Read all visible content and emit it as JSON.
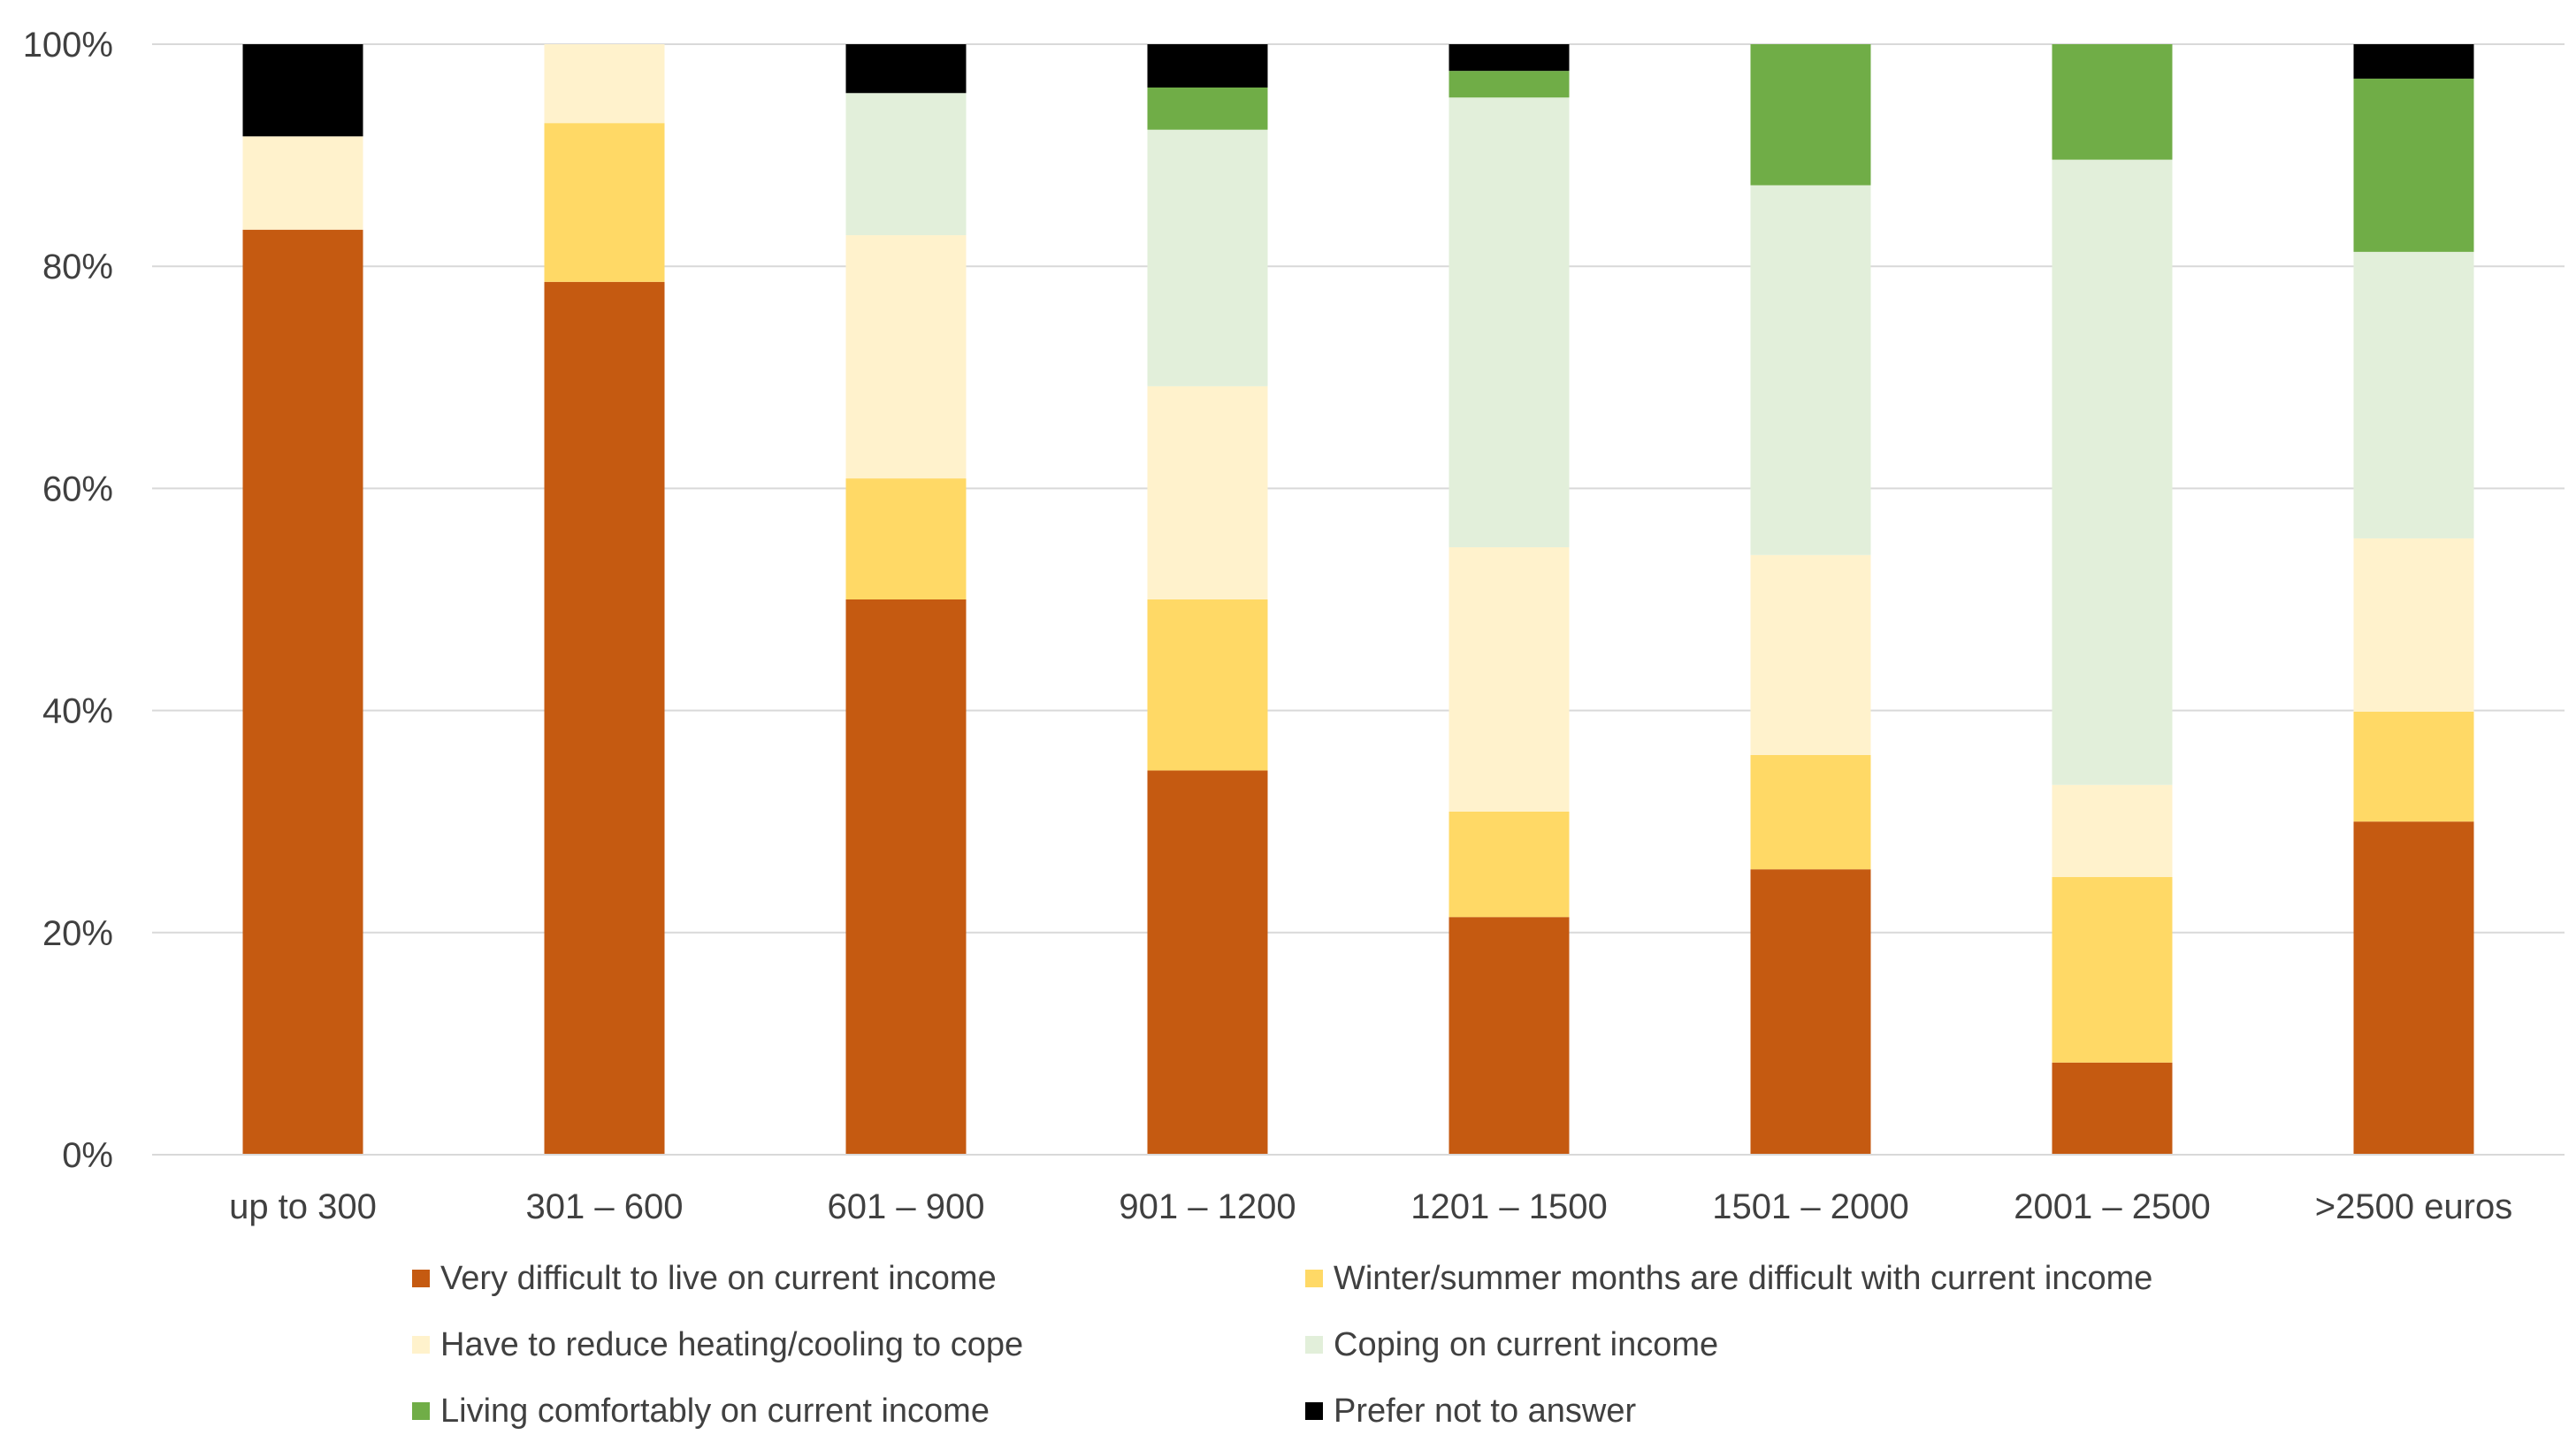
{
  "chart_data": {
    "type": "bar",
    "stacked": true,
    "percent_stacked": true,
    "title": "",
    "xlabel": "",
    "ylabel": "",
    "ylim": [
      0,
      100
    ],
    "yticks": [
      0,
      20,
      40,
      60,
      80,
      100
    ],
    "ytick_labels": [
      "0%",
      "20%",
      "40%",
      "60%",
      "80%",
      "100%"
    ],
    "grid": true,
    "legend_position": "bottom",
    "categories": [
      "up to 300",
      "301 – 600",
      "601 – 900",
      "901 – 1200",
      "1201 – 1500",
      "1501 – 2000",
      "2001 – 2500",
      ">2500 euros"
    ],
    "series": [
      {
        "name": "Very difficult to live on current income",
        "color": "#C55A11",
        "values": [
          83.3,
          78.6,
          50.0,
          34.6,
          21.4,
          25.7,
          8.3,
          30.0
        ]
      },
      {
        "name": "Winter/summer months are difficult with current income",
        "color": "#FFD966",
        "values": [
          0.0,
          14.3,
          10.9,
          15.4,
          9.5,
          10.3,
          16.7,
          9.9
        ]
      },
      {
        "name": "Have to reduce heating/cooling to cope",
        "color": "#FFF2CC",
        "values": [
          8.4,
          7.1,
          21.9,
          19.2,
          23.8,
          18.0,
          8.3,
          15.6
        ]
      },
      {
        "name": "Coping on current income",
        "color": "#E2EFDA",
        "values": [
          0.0,
          0.0,
          12.8,
          23.1,
          40.5,
          33.3,
          56.3,
          25.8
        ]
      },
      {
        "name": "Living comfortably on current income",
        "color": "#70AD47",
        "values": [
          0.0,
          0.0,
          0.0,
          3.8,
          2.4,
          12.7,
          10.4,
          15.6
        ]
      },
      {
        "name": "Prefer not to answer",
        "color": "#000000",
        "values": [
          8.3,
          0.0,
          4.4,
          3.9,
          2.4,
          0.0,
          0.0,
          3.1
        ]
      }
    ]
  }
}
